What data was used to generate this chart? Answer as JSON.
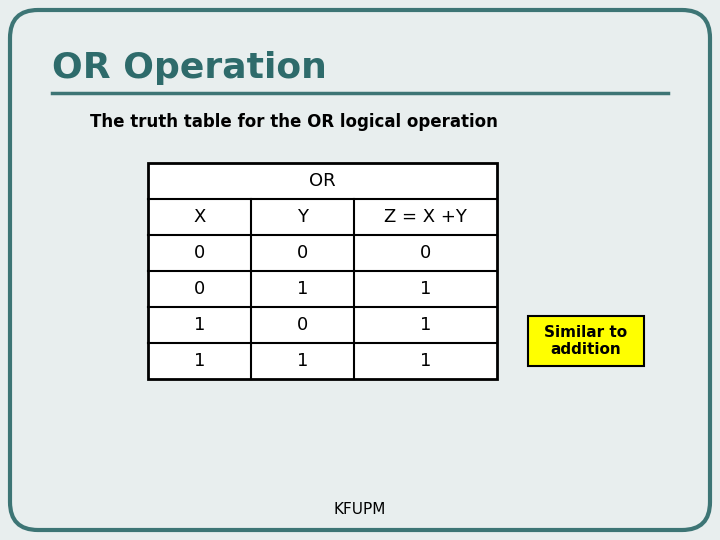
{
  "title": "OR Operation",
  "title_color": "#2E6B6B",
  "subtitle": "The truth table for the OR logical operation",
  "table_header_top": "OR",
  "table_col_headers": [
    "X",
    "Y",
    "Z = X +Y"
  ],
  "table_rows": [
    [
      "0",
      "0",
      "0"
    ],
    [
      "0",
      "1",
      "1"
    ],
    [
      "1",
      "0",
      "1"
    ],
    [
      "1",
      "1",
      "1"
    ]
  ],
  "annotation_text": "Similar to\naddition",
  "annotation_bg": "#FFFF00",
  "footer": "KFUPM",
  "bg_color": "#E8EEEE",
  "border_color": "#3D7575",
  "separator_color": "#3D7575"
}
